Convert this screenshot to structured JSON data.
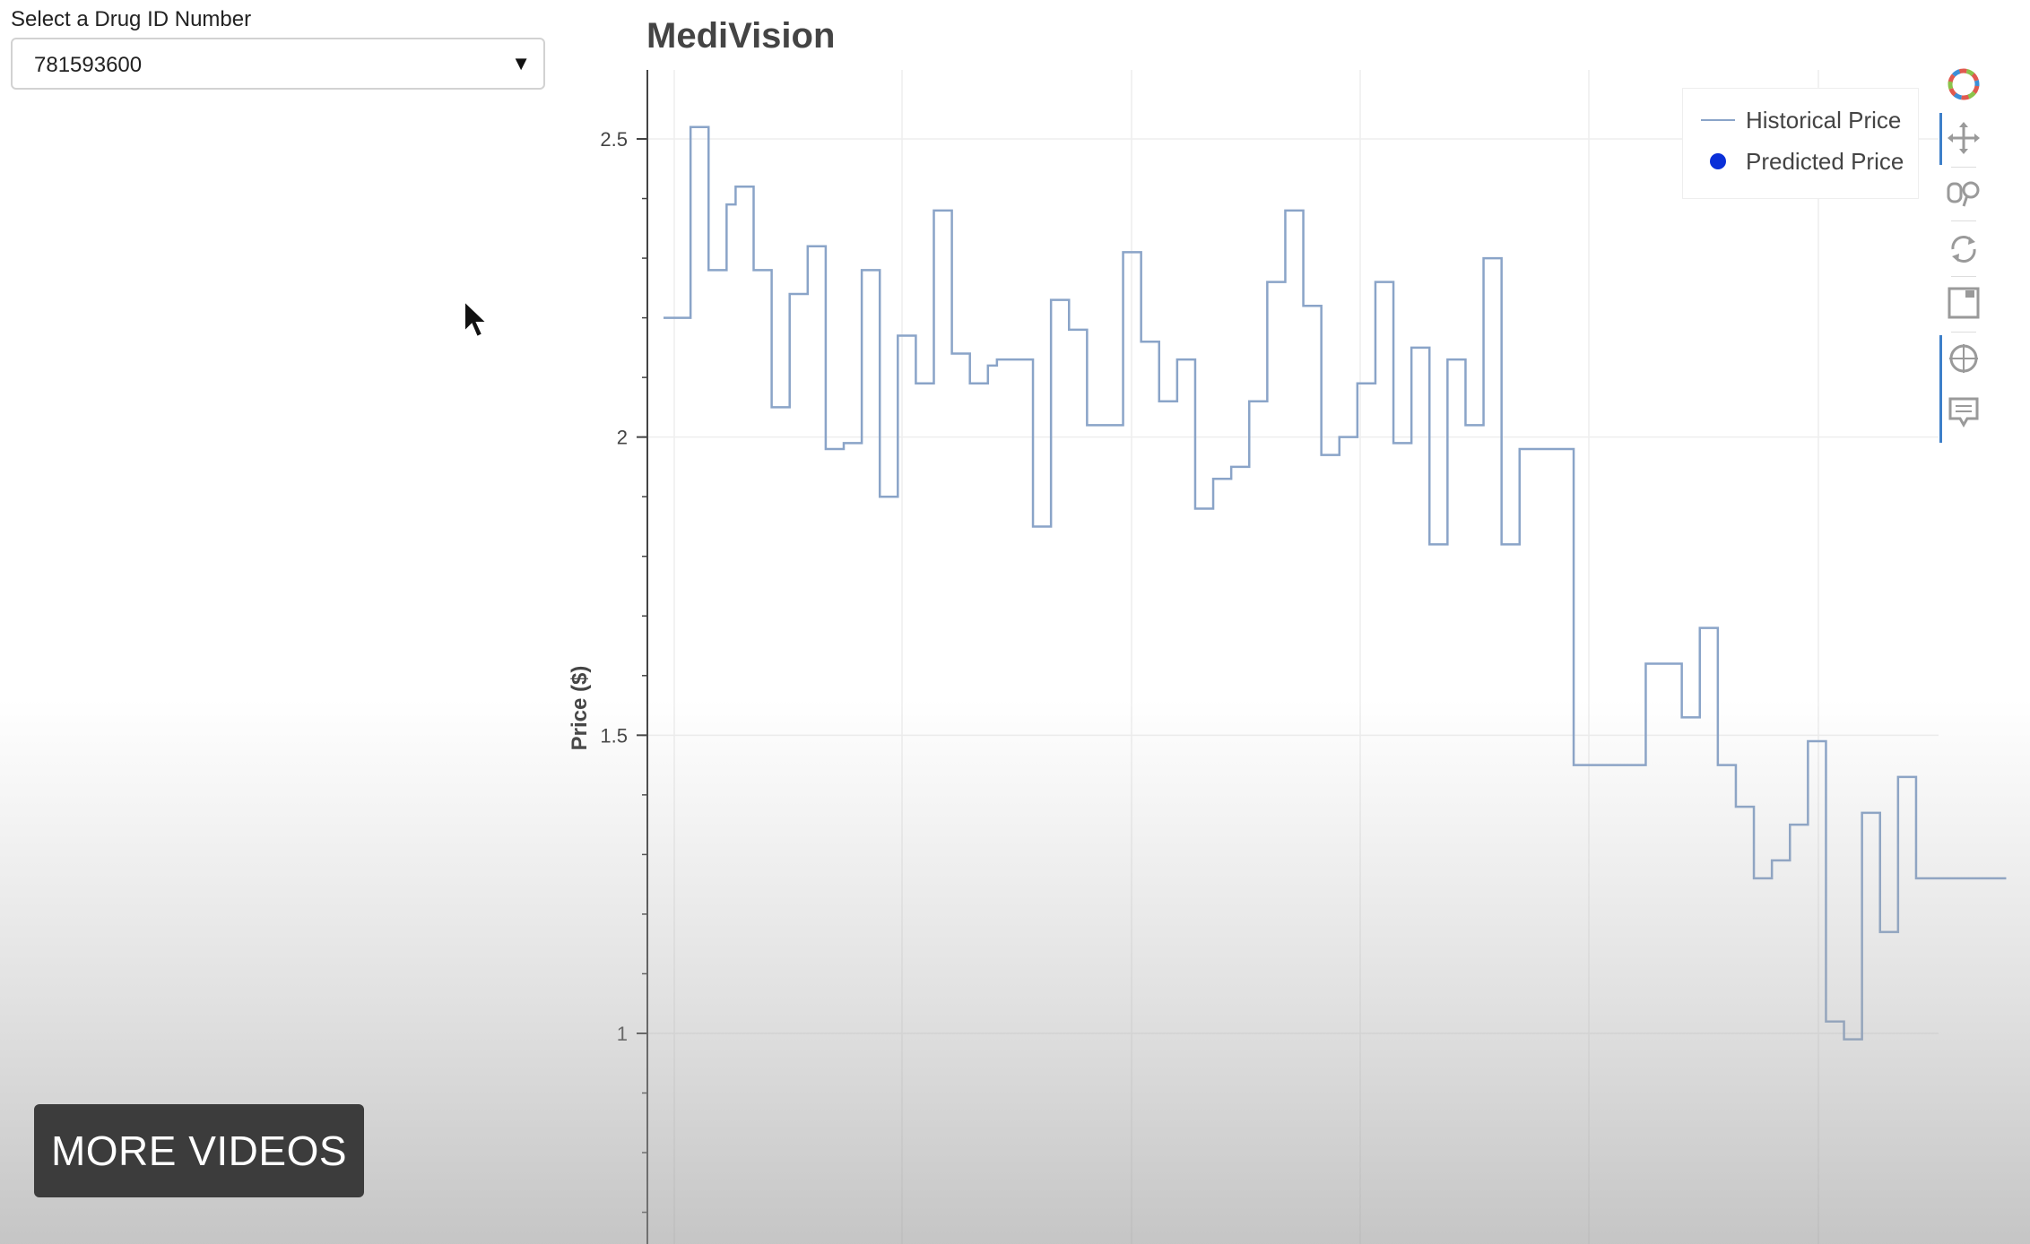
{
  "selector": {
    "label": "Select a Drug ID Number",
    "value": "781593600"
  },
  "overlay": {
    "more_videos_label": "MORE VIDEOS"
  },
  "toolbar": {
    "tools": [
      "bokeh-logo-icon",
      "pan-icon",
      "box-zoom-icon",
      "reset-icon",
      "save-icon",
      "crosshair-icon",
      "hover-icon"
    ],
    "active_tools": [
      "pan-icon",
      "crosshair-icon"
    ]
  },
  "colors": {
    "line": "#8aa4c8",
    "predicted": "#0a2fd8",
    "grid": "#eeeeee",
    "active_tool": "#3d7fc9"
  },
  "chart_data": {
    "type": "line",
    "title": "MediVision",
    "ylabel": "Price ($)",
    "xlabel": "",
    "ylim": [
      0.65,
      2.62
    ],
    "yticks": [
      1,
      1.5,
      2,
      2.5
    ],
    "ytick_labels": [
      "1",
      "1.5",
      "2",
      "2.5"
    ],
    "grid": true,
    "legend_position": "top-right",
    "step": true,
    "series": [
      {
        "name": "Historical Price",
        "kind": "step-line",
        "x": [
          0,
          1,
          2,
          3,
          4,
          5,
          6,
          7,
          8,
          9,
          10,
          11,
          12,
          13,
          14,
          15,
          16,
          17,
          18,
          19,
          20,
          21,
          22,
          23,
          24,
          25,
          26,
          27,
          28,
          29,
          30,
          31,
          32,
          33,
          34,
          35,
          36,
          37,
          38,
          39,
          40,
          41,
          42,
          43,
          44,
          45,
          46,
          47,
          48,
          49,
          50,
          51,
          52,
          53,
          54,
          55,
          56,
          57,
          58,
          59,
          60,
          61,
          62,
          63,
          64,
          65,
          66,
          67,
          68,
          69,
          70,
          71,
          72,
          73,
          74,
          75,
          76,
          77,
          78,
          79,
          80,
          81,
          82,
          83,
          84,
          85,
          86,
          87,
          88,
          89,
          90,
          91,
          92,
          93,
          94,
          95,
          96,
          97,
          98,
          99,
          100,
          101,
          102,
          103,
          104,
          105,
          106,
          107,
          108,
          109,
          110,
          111,
          112,
          113,
          114,
          115,
          116,
          117,
          118,
          119,
          120,
          121,
          122,
          123,
          124,
          125,
          126,
          127,
          128,
          129,
          130,
          131,
          132,
          133,
          134,
          135,
          136,
          137,
          138,
          139,
          140,
          141,
          142,
          143,
          144,
          145,
          146,
          147,
          148,
          149
        ],
        "y": [
          2.2,
          2.2,
          2.2,
          2.52,
          2.52,
          2.28,
          2.28,
          2.39,
          2.42,
          2.42,
          2.28,
          2.28,
          2.05,
          2.05,
          2.24,
          2.24,
          2.32,
          2.32,
          1.98,
          1.98,
          1.99,
          1.99,
          2.28,
          2.28,
          1.9,
          1.9,
          2.17,
          2.17,
          2.09,
          2.09,
          2.38,
          2.38,
          2.14,
          2.14,
          2.09,
          2.09,
          2.12,
          2.13,
          2.13,
          2.13,
          2.13,
          1.85,
          1.85,
          2.23,
          2.23,
          2.18,
          2.18,
          2.02,
          2.02,
          2.02,
          2.02,
          2.31,
          2.31,
          2.16,
          2.16,
          2.06,
          2.06,
          2.13,
          2.13,
          1.88,
          1.88,
          1.93,
          1.93,
          1.95,
          1.95,
          2.06,
          2.06,
          2.26,
          2.26,
          2.38,
          2.38,
          2.22,
          2.22,
          1.97,
          1.97,
          2.0,
          2.0,
          2.09,
          2.09,
          2.26,
          2.26,
          1.99,
          1.99,
          2.15,
          2.15,
          1.82,
          1.82,
          2.13,
          2.13,
          2.02,
          2.02,
          2.3,
          2.3,
          1.82,
          1.82,
          1.98,
          1.98,
          1.98,
          1.98,
          1.98,
          1.98,
          1.45,
          1.45,
          1.45,
          1.45,
          1.45,
          1.45,
          1.45,
          1.45,
          1.62,
          1.62,
          1.62,
          1.62,
          1.53,
          1.53,
          1.68,
          1.68,
          1.45,
          1.45,
          1.38,
          1.38,
          1.26,
          1.26,
          1.29,
          1.29,
          1.35,
          1.35,
          1.49,
          1.49,
          1.02,
          1.02,
          0.99,
          0.99,
          1.37,
          1.37,
          1.17,
          1.17,
          1.43,
          1.43,
          1.26,
          1.26,
          1.26,
          1.26,
          1.26,
          1.26,
          1.26,
          1.26,
          1.26,
          1.26,
          1.26
        ]
      },
      {
        "name": "Predicted Price",
        "kind": "scatter",
        "x": [],
        "y": []
      }
    ]
  }
}
